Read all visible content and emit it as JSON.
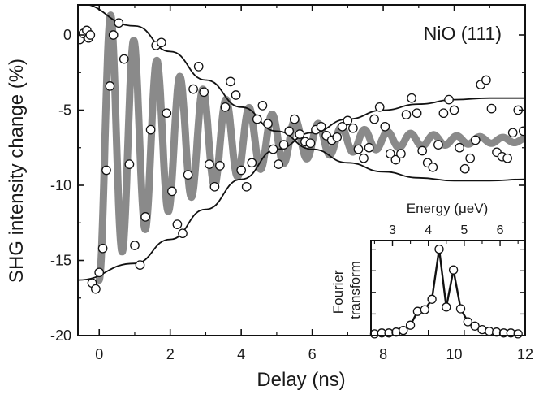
{
  "chart_data": [
    {
      "type": "scatter",
      "xlabel": "Delay (ns)",
      "ylabel": "SHG intensity change (%)",
      "annotation": "NiO (111)",
      "xlim": [
        -0.6,
        12
      ],
      "ylim": [
        -20,
        2
      ],
      "x_ticks": [
        0,
        2,
        4,
        6,
        8,
        10,
        12
      ],
      "x_tick_labels": [
        "0",
        "2",
        "4",
        "6",
        "8",
        "10",
        "12"
      ],
      "y_ticks": [
        0,
        -5,
        -10,
        -15,
        -20
      ],
      "y_tick_labels": [
        "0",
        "-5",
        "-10",
        "-15",
        "-20"
      ],
      "grid": false,
      "colors": {
        "fit_curve": "#8a8a8a",
        "envelope": "#111111",
        "marker_fill": "#ffffff",
        "marker_edge": "#111111"
      },
      "series": [
        {
          "kind": "markers",
          "x": [
            -0.95,
            -0.9,
            -0.85,
            -0.8,
            -0.75,
            -0.65,
            -0.55,
            -0.45,
            -0.35,
            -0.3,
            -0.25,
            -0.2,
            -0.1,
            0.0,
            0.1,
            0.2,
            0.3,
            0.4,
            0.55,
            0.7,
            0.85,
            1.0,
            1.15,
            1.3,
            1.45,
            1.6,
            1.75,
            1.9,
            2.05,
            2.2,
            2.35,
            2.5,
            2.65,
            2.8,
            2.95,
            3.1,
            3.25,
            3.4,
            3.55,
            3.7,
            3.85,
            4.0,
            4.15,
            4.3,
            4.45,
            4.6,
            4.75,
            4.9,
            5.05,
            5.2,
            5.35,
            5.5,
            5.65,
            5.8,
            5.95,
            6.1,
            6.25,
            6.4,
            6.55,
            6.7,
            6.85,
            7.0,
            7.15,
            7.3,
            7.45,
            7.6,
            7.75,
            7.9,
            8.05,
            8.2,
            8.35,
            8.5,
            8.65,
            8.8,
            8.95,
            9.1,
            9.25,
            9.4,
            9.55,
            9.7,
            9.85,
            10.0,
            10.15,
            10.3,
            10.45,
            10.6,
            10.75,
            10.9,
            11.05,
            11.2,
            11.35,
            11.5,
            11.65,
            11.8,
            11.95
          ],
          "y": [
            0.0,
            -0.1,
            0.1,
            -0.2,
            0.0,
            -0.5,
            -0.3,
            0.1,
            0.3,
            -0.2,
            0.0,
            -16.5,
            -16.9,
            -15.8,
            -14.2,
            -9.0,
            -3.4,
            0.0,
            0.8,
            -1.6,
            -8.6,
            -14.0,
            -15.3,
            -12.1,
            -6.3,
            -0.7,
            -0.5,
            -5.2,
            -10.4,
            -12.6,
            -13.2,
            -9.3,
            -3.6,
            -2.1,
            -3.8,
            -8.6,
            -10.1,
            -8.7,
            -4.8,
            -3.1,
            -4.0,
            -9.0,
            -10.1,
            -8.5,
            -5.6,
            -4.7,
            -5.9,
            -7.6,
            -8.6,
            -7.3,
            -6.4,
            -5.6,
            -6.6,
            -7.1,
            -7.2,
            -6.3,
            -6.1,
            -6.7,
            -7.0,
            -6.8,
            -6.1,
            -5.7,
            -6.2,
            -7.6,
            -8.2,
            -7.5,
            -5.6,
            -4.8,
            -6.1,
            -7.9,
            -8.3,
            -7.9,
            -5.3,
            -4.2,
            -5.2,
            -7.7,
            -8.5,
            -8.8,
            -7.3,
            -5.2,
            -4.3,
            -5.0,
            -7.5,
            -8.9,
            -8.2,
            -7.0,
            -3.3,
            -3.0,
            -4.9,
            -7.8,
            -8.1,
            -8.2,
            -6.5,
            -5.0,
            -6.4
          ]
        },
        {
          "kind": "fit",
          "model": "damped_oscillation",
          "offset": -7.0,
          "amplitude": 9.3,
          "period_ns": 0.65,
          "decay_ns": 2.9
        },
        {
          "kind": "envelope_upper",
          "points": [
            [
              -0.6,
              2.1
            ],
            [
              1.0,
              0.6
            ],
            [
              2.0,
              -1.1
            ],
            [
              3.0,
              -3.0
            ],
            [
              4.0,
              -4.8
            ],
            [
              5.0,
              -6.4
            ],
            [
              6.0,
              -7.6
            ],
            [
              7.0,
              -8.5
            ],
            [
              8.0,
              -9.1
            ],
            [
              9.0,
              -9.5
            ],
            [
              10.0,
              -9.7
            ],
            [
              11.0,
              -9.7
            ],
            [
              12.0,
              -9.6
            ]
          ]
        },
        {
          "kind": "envelope_lower",
          "points": [
            [
              -0.6,
              -16.3
            ],
            [
              1.0,
              -15.2
            ],
            [
              2.0,
              -13.6
            ],
            [
              3.0,
              -11.6
            ],
            [
              4.0,
              -9.6
            ],
            [
              5.0,
              -7.6
            ],
            [
              6.0,
              -6.5
            ],
            [
              7.0,
              -5.6
            ],
            [
              8.0,
              -5.0
            ],
            [
              9.0,
              -4.6
            ],
            [
              10.0,
              -4.3
            ],
            [
              11.0,
              -4.2
            ],
            [
              12.0,
              -4.2
            ]
          ]
        }
      ]
    },
    {
      "type": "line",
      "ylabel": "Fourier transform",
      "xlabel": "Energy (μeV)",
      "xlim": [
        2.4,
        6.7
      ],
      "x_ticks": [
        3,
        4,
        5,
        6
      ],
      "x_tick_labels": [
        "3",
        "4",
        "5",
        "6"
      ],
      "ylim": [
        0,
        1.1
      ],
      "series": [
        {
          "x": [
            2.5,
            2.7,
            2.9,
            3.1,
            3.3,
            3.5,
            3.7,
            3.9,
            4.1,
            4.3,
            4.5,
            4.7,
            4.9,
            5.1,
            5.3,
            5.5,
            5.7,
            5.9,
            6.1,
            6.3,
            6.5
          ],
          "y": [
            0.02,
            0.03,
            0.03,
            0.04,
            0.06,
            0.12,
            0.28,
            0.3,
            0.42,
            1.0,
            0.33,
            0.76,
            0.31,
            0.16,
            0.11,
            0.07,
            0.05,
            0.04,
            0.03,
            0.03,
            0.02
          ]
        }
      ]
    }
  ]
}
